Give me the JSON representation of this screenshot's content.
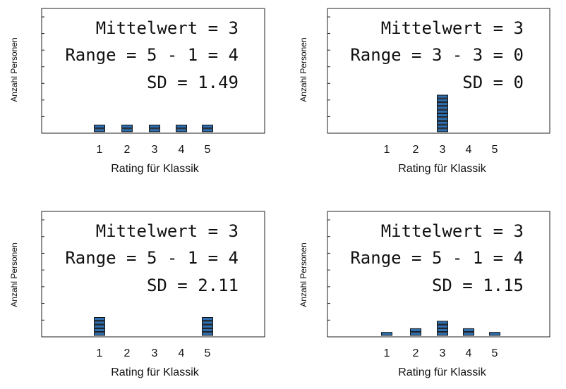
{
  "chart_data": [
    {
      "type": "dotplot",
      "xlabel": "Rating für Klassik",
      "ylabel": "Anzahl Personen",
      "categories": [
        "1",
        "2",
        "3",
        "4",
        "5"
      ],
      "values": [
        2,
        2,
        2,
        2,
        2
      ],
      "stats": [
        "Mittelwert = 3",
        "Range = 5 - 1 = 4",
        "SD = 1.49"
      ]
    },
    {
      "type": "dotplot",
      "xlabel": "Rating für Klassik",
      "ylabel": "Anzahl Personen",
      "categories": [
        "1",
        "2",
        "3",
        "4",
        "5"
      ],
      "values": [
        0,
        0,
        10,
        0,
        0
      ],
      "stats": [
        "Mittelwert = 3",
        "Range = 3 - 3 = 0",
        "SD = 0"
      ]
    },
    {
      "type": "dotplot",
      "xlabel": "Rating für Klassik",
      "ylabel": "Anzahl Personen",
      "categories": [
        "1",
        "2",
        "3",
        "4",
        "5"
      ],
      "values": [
        5,
        0,
        0,
        0,
        5
      ],
      "stats": [
        "Mittelwert = 3",
        "Range = 5 - 1 = 4",
        "SD = 2.11"
      ]
    },
    {
      "type": "dotplot",
      "xlabel": "Rating für Klassik",
      "ylabel": "Anzahl Personen",
      "categories": [
        "1",
        "2",
        "3",
        "4",
        "5"
      ],
      "values": [
        1,
        2,
        4,
        2,
        1
      ],
      "stats": [
        "Mittelwert = 3",
        "Range = 5 - 1 = 4",
        "SD = 1.15"
      ]
    }
  ],
  "colors": {
    "marker_fill": "#2f6fb0",
    "marker_stroke": "#111111",
    "axis": "#222222"
  }
}
